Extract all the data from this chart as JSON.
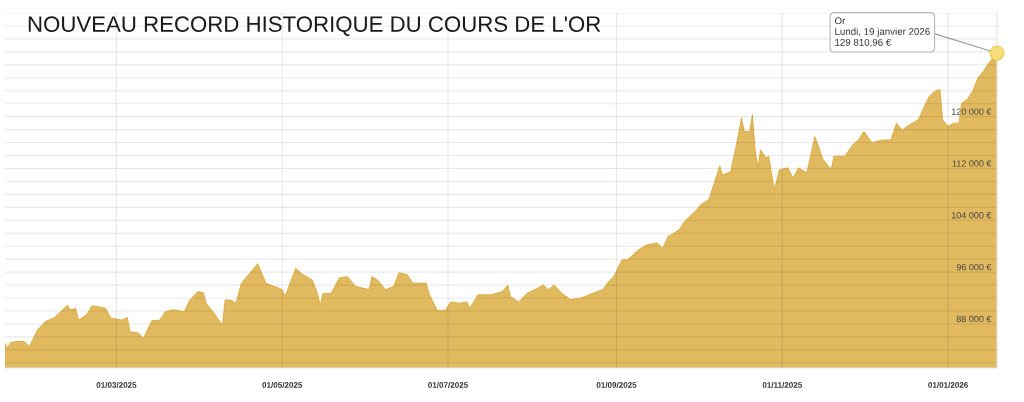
{
  "chart_data": {
    "type": "area",
    "title": "NOUVEAU RECORD HISTORIQUE DU COURS DE L'OR",
    "series": [
      {
        "color": "#d9a532",
        "x": [
          "2025-01-19",
          "2025-01-20",
          "2025-01-21",
          "2025-01-23",
          "2025-01-26",
          "2025-01-28",
          "2025-01-29",
          "2025-01-31",
          "2025-02-03",
          "2025-02-06",
          "2025-02-11",
          "2025-02-12",
          "2025-02-14",
          "2025-02-15",
          "2025-02-18",
          "2025-02-20",
          "2025-02-22",
          "2025-02-25",
          "2025-02-27",
          "2025-03-03",
          "2025-03-05",
          "2025-03-06",
          "2025-03-09",
          "2025-03-11",
          "2025-03-14",
          "2025-03-17",
          "2025-03-19",
          "2025-03-22",
          "2025-03-26",
          "2025-03-28",
          "2025-03-31",
          "2025-04-02",
          "2025-04-03",
          "2025-04-05",
          "2025-04-09",
          "2025-04-10",
          "2025-04-12",
          "2025-04-14",
          "2025-04-16",
          "2025-04-22",
          "2025-04-25",
          "2025-05-01",
          "2025-05-02",
          "2025-05-06",
          "2025-05-08",
          "2025-05-12",
          "2025-05-14",
          "2025-05-15",
          "2025-05-16",
          "2025-05-19",
          "2025-05-22",
          "2025-05-25",
          "2025-05-28",
          "2025-06-02",
          "2025-06-03",
          "2025-06-05",
          "2025-06-08",
          "2025-06-11",
          "2025-06-13",
          "2025-06-16",
          "2025-06-18",
          "2025-06-23",
          "2025-06-24",
          "2025-06-27",
          "2025-06-30",
          "2025-07-02",
          "2025-07-05",
          "2025-07-08",
          "2025-07-09",
          "2025-07-12",
          "2025-07-17",
          "2025-07-21",
          "2025-07-23",
          "2025-07-24",
          "2025-07-27",
          "2025-07-30",
          "2025-08-02",
          "2025-08-05",
          "2025-08-07",
          "2025-08-09",
          "2025-08-12",
          "2025-08-15",
          "2025-08-19",
          "2025-08-23",
          "2025-08-27",
          "2025-08-29",
          "2025-08-31",
          "2025-09-03",
          "2025-09-05",
          "2025-09-09",
          "2025-09-12",
          "2025-09-16",
          "2025-09-18",
          "2025-09-20",
          "2025-09-24",
          "2025-09-26",
          "2025-09-30",
          "2025-10-02",
          "2025-10-05",
          "2025-10-07",
          "2025-10-09",
          "2025-10-10",
          "2025-10-13",
          "2025-10-15",
          "2025-10-17",
          "2025-10-18",
          "2025-10-20",
          "2025-10-21",
          "2025-10-22",
          "2025-10-23",
          "2025-10-24",
          "2025-10-26",
          "2025-10-27",
          "2025-10-29",
          "2025-10-31",
          "2025-11-03",
          "2025-11-05",
          "2025-11-07",
          "2025-11-10",
          "2025-11-13",
          "2025-11-16",
          "2025-11-19",
          "2025-11-20",
          "2025-11-24",
          "2025-11-27",
          "2025-11-29",
          "2025-12-01",
          "2025-12-04",
          "2025-12-08",
          "2025-12-11",
          "2025-12-13",
          "2025-12-15",
          "2025-12-18",
          "2025-12-21",
          "2025-12-23",
          "2025-12-25",
          "2025-12-27",
          "2025-12-29",
          "2025-12-30",
          "2026-01-01",
          "2026-01-03",
          "2026-01-05",
          "2026-01-06",
          "2026-01-08",
          "2026-01-10",
          "2026-01-12",
          "2026-01-14",
          "2026-01-16",
          "2026-01-19"
        ],
        "values": [
          85000,
          84300,
          85100,
          85300,
          85300,
          84500,
          85400,
          87100,
          88400,
          88900,
          90900,
          90200,
          90400,
          88600,
          89400,
          90800,
          90700,
          90400,
          88900,
          88600,
          89000,
          86800,
          86600,
          85800,
          88500,
          88600,
          89900,
          90200,
          89900,
          91700,
          93000,
          92800,
          91200,
          90200,
          87800,
          91700,
          91700,
          91200,
          94300,
          97300,
          94300,
          93300,
          92200,
          96600,
          95800,
          94800,
          92700,
          90800,
          92700,
          92700,
          95100,
          95300,
          93800,
          93300,
          95300,
          94800,
          93300,
          93800,
          95900,
          95600,
          94300,
          94300,
          92700,
          90100,
          90100,
          91400,
          91200,
          91400,
          90400,
          92500,
          92500,
          93000,
          94000,
          92200,
          91400,
          92700,
          93300,
          94000,
          93300,
          94000,
          92700,
          91800,
          92000,
          92700,
          93300,
          94500,
          95300,
          97900,
          97900,
          99400,
          100200,
          100500,
          99700,
          101500,
          102500,
          103800,
          105400,
          106400,
          107200,
          109800,
          112400,
          111000,
          111500,
          115400,
          119800,
          117700,
          117700,
          120300,
          114900,
          112100,
          114900,
          113600,
          113900,
          108700,
          111800,
          112100,
          110500,
          112100,
          111300,
          116900,
          113400,
          111800,
          113900,
          113900,
          115700,
          116400,
          117700,
          116000,
          116400,
          116400,
          119000,
          117900,
          118800,
          119500,
          121300,
          123100,
          123900,
          124200,
          119500,
          118500,
          119000,
          119000,
          122100,
          122600,
          123900,
          126000,
          127000,
          128300,
          129810.96
        ]
      }
    ],
    "xlim": [
      "2025-01-19",
      "2026-01-19"
    ],
    "xticks": [
      {
        "value": "2025-03-01",
        "label": "01/03/2025"
      },
      {
        "value": "2025-05-01",
        "label": "01/05/2025"
      },
      {
        "value": "2025-07-01",
        "label": "01/07/2025"
      },
      {
        "value": "2025-09-01",
        "label": "01/09/2025"
      },
      {
        "value": "2025-11-01",
        "label": "01/11/2025"
      },
      {
        "value": "2026-01-01",
        "label": "01/01/2026"
      }
    ],
    "ylim": [
      81200,
      136000
    ],
    "yticks": [
      {
        "value": 82000,
        "label": null
      },
      {
        "value": 84000,
        "label": null
      },
      {
        "value": 86000,
        "label": null
      },
      {
        "value": 88000,
        "label": "88 000 €"
      },
      {
        "value": 90000,
        "label": null
      },
      {
        "value": 92000,
        "label": null
      },
      {
        "value": 94000,
        "label": null
      },
      {
        "value": 96000,
        "label": "96 000 €"
      },
      {
        "value": 98000,
        "label": null
      },
      {
        "value": 100000,
        "label": null
      },
      {
        "value": 102000,
        "label": null
      },
      {
        "value": 104000,
        "label": "104 000 €"
      },
      {
        "value": 106000,
        "label": null
      },
      {
        "value": 108000,
        "label": null
      },
      {
        "value": 110000,
        "label": null
      },
      {
        "value": 112000,
        "label": "112 000 €"
      },
      {
        "value": 114000,
        "label": null
      },
      {
        "value": 116000,
        "label": null
      },
      {
        "value": 118000,
        "label": null
      },
      {
        "value": 120000,
        "label": "120 000 €"
      },
      {
        "value": 122000,
        "label": null
      },
      {
        "value": 124000,
        "label": null
      },
      {
        "value": 126000,
        "label": null
      },
      {
        "value": 128000,
        "label": null
      },
      {
        "value": 130000,
        "label": null
      },
      {
        "value": 132000,
        "label": null
      },
      {
        "value": 134000,
        "label": null
      },
      {
        "value": 136000,
        "label": null
      }
    ],
    "grid": true,
    "annotations": [
      {
        "text": "Or\nLundi, 19 janvier 2026\n129 810,96 €",
        "x": "2026-01-19",
        "y": 129810.96
      }
    ]
  }
}
